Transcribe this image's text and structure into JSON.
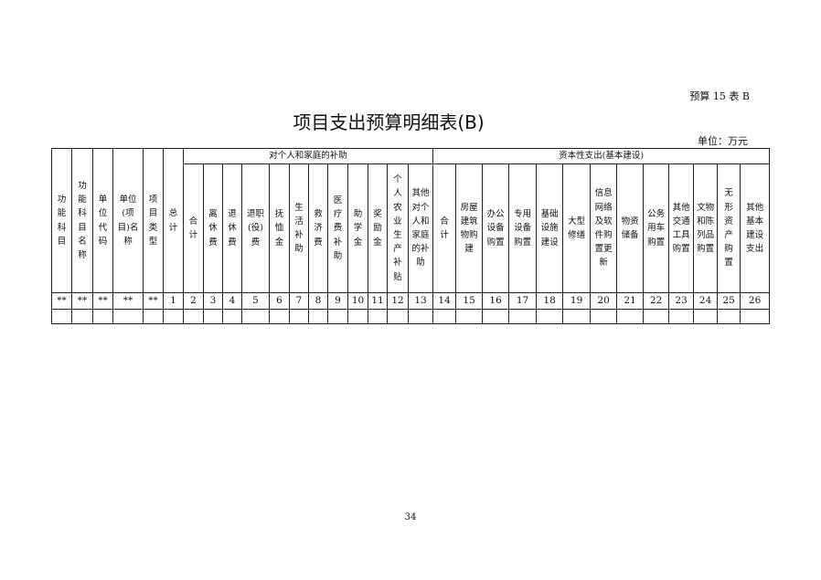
{
  "table_code": "预算 15 表 B",
  "title": "项目支出预算明细表(B)",
  "unit": "单位：万元",
  "group_headers": [
    "对个人和家庭的补助",
    "资本性支出(基本建设)"
  ],
  "fixed_headers": [
    "功\n能\n科\n目",
    "功\n能\n科\n目\n名\n称",
    "单\n位\n代\n码",
    "单位\n(项\n目)名\n称",
    "项\n目\n类\n型",
    "总\n计"
  ],
  "group1_headers": [
    "合\n计",
    "离\n休\n费",
    "退\n休\n费",
    "退职\n(役)\n费",
    "抚\n恤\n金",
    "生\n活\n补\n助",
    "救\n济\n费",
    "医\n疗\n费\n补\n助",
    "助\n学\n金",
    "奖\n励\n金",
    "个\n人\n农\n业\n生\n产\n补\n贴",
    "其他\n对个\n人和\n家庭\n的补\n助"
  ],
  "group2_headers": [
    "合\n计",
    "房屋\n建筑\n物购\n建",
    "办公\n设备\n购置",
    "专用\n设备\n购置",
    "基础\n设施\n建设",
    "大型\n修缮",
    "信息\n网络\n及软\n件购\n置更\n新",
    "物资\n储备",
    "公务\n用车\n购置",
    "其他\n交通\n工具\n购置",
    "文物\n和陈\n列品\n购置",
    "无\n形\n资\n产\n购\n置",
    "其他\n基本\n建设\n支出"
  ],
  "number_row": [
    "**",
    "**",
    "**",
    "**",
    "**",
    "1",
    "2",
    "3",
    "4",
    "5",
    "6",
    "7",
    "8",
    "9",
    "10",
    "11",
    "12",
    "13",
    "14",
    "15",
    "16",
    "17",
    "18",
    "19",
    "20",
    "21",
    "22",
    "23",
    "24",
    "25",
    "26"
  ],
  "page_number": "34"
}
